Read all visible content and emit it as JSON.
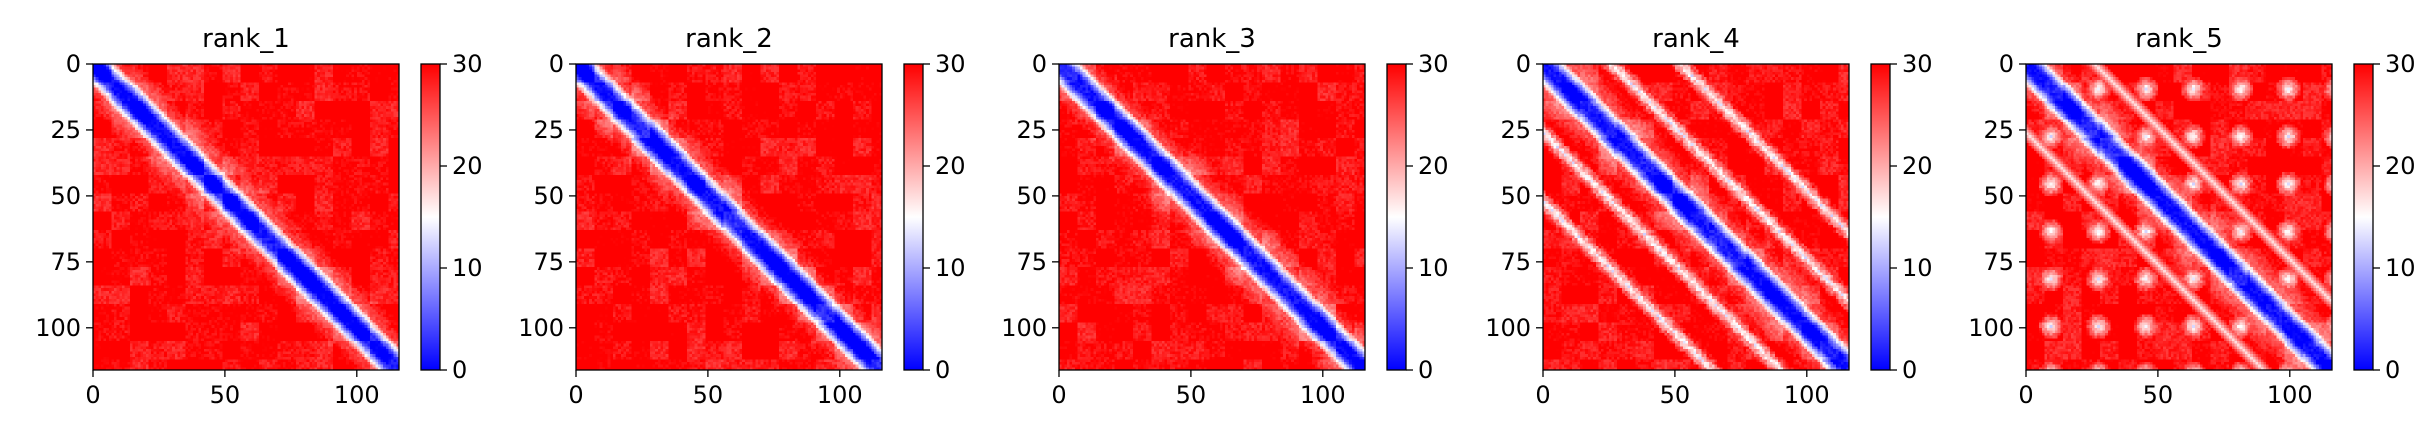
{
  "chart_data": [
    {
      "type": "heatmap",
      "title": "rank_1",
      "matrix_size": 116,
      "pattern": "diagonal",
      "x_ticks": [
        0,
        50,
        100
      ],
      "y_ticks": [
        0,
        25,
        50,
        75,
        100
      ],
      "xlim": [
        0,
        116
      ],
      "ylim": [
        116,
        0
      ],
      "color_range": [
        0,
        30
      ],
      "colorbar_ticks": [
        0,
        10,
        20,
        30
      ],
      "colormap": [
        "#0000ff",
        "#ffffff",
        "#ff0000"
      ]
    },
    {
      "type": "heatmap",
      "title": "rank_2",
      "matrix_size": 116,
      "pattern": "diagonal",
      "x_ticks": [
        0,
        50,
        100
      ],
      "y_ticks": [
        0,
        25,
        50,
        75,
        100
      ],
      "xlim": [
        0,
        116
      ],
      "ylim": [
        116,
        0
      ],
      "color_range": [
        0,
        30
      ],
      "colorbar_ticks": [
        0,
        10,
        20,
        30
      ],
      "colormap": [
        "#0000ff",
        "#ffffff",
        "#ff0000"
      ]
    },
    {
      "type": "heatmap",
      "title": "rank_3",
      "matrix_size": 116,
      "pattern": "diagonal",
      "x_ticks": [
        0,
        50,
        100
      ],
      "y_ticks": [
        0,
        25,
        50,
        75,
        100
      ],
      "xlim": [
        0,
        116
      ],
      "ylim": [
        116,
        0
      ],
      "color_range": [
        0,
        30
      ],
      "colorbar_ticks": [
        0,
        10,
        20,
        30
      ],
      "colormap": [
        "#0000ff",
        "#ffffff",
        "#ff0000"
      ]
    },
    {
      "type": "heatmap",
      "title": "rank_4",
      "matrix_size": 116,
      "pattern": "diagonal-with-parallel-bands",
      "x_ticks": [
        0,
        50,
        100
      ],
      "y_ticks": [
        0,
        25,
        50,
        75,
        100
      ],
      "xlim": [
        0,
        116
      ],
      "ylim": [
        116,
        0
      ],
      "color_range": [
        0,
        30
      ],
      "colorbar_ticks": [
        0,
        10,
        20,
        30
      ],
      "colormap": [
        "#0000ff",
        "#ffffff",
        "#ff0000"
      ]
    },
    {
      "type": "heatmap",
      "title": "rank_5",
      "matrix_size": 116,
      "pattern": "diagonal-with-spots",
      "x_ticks": [
        0,
        50,
        100
      ],
      "y_ticks": [
        0,
        25,
        50,
        75,
        100
      ],
      "xlim": [
        0,
        116
      ],
      "ylim": [
        116,
        0
      ],
      "color_range": [
        0,
        30
      ],
      "colorbar_ticks": [
        0,
        10,
        20,
        30
      ],
      "colormap": [
        "#0000ff",
        "#ffffff",
        "#ff0000"
      ]
    }
  ]
}
